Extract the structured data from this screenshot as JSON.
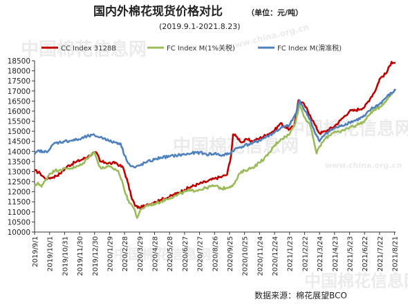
{
  "title": "国内外棉花现货价格对比",
  "unit": "（单位：元/吨）",
  "subtitle": "(2019.9.1-2021.8.23)",
  "source": "数据来源：棉花展望BCO",
  "watermark": {
    "text_cn": "中国棉花信息网",
    "text_en": "www.china.org.cn"
  },
  "chart_data": {
    "type": "line",
    "ylim": [
      10000,
      18500
    ],
    "yticks": [
      10000,
      10500,
      11000,
      11500,
      12000,
      12500,
      13000,
      13500,
      14000,
      14500,
      15000,
      15500,
      16000,
      16500,
      17000,
      17500,
      18000,
      18500
    ],
    "xlim": [
      "2019-09-01",
      "2021-08-23"
    ],
    "xtick_labels": [
      "2019/9/1",
      "2019/10/1",
      "2019/10/31",
      "2019/11/30",
      "2019/12/30",
      "2020/1/29",
      "2020/2/28",
      "2020/3/29",
      "2020/4/28",
      "2020/5/28",
      "2020/6/27",
      "2020/7/27",
      "2020/8/26",
      "2020/9/25",
      "2020/10/25",
      "2020/11/24",
      "2020/12/24",
      "2021/1/23",
      "2021/2/22",
      "2021/3/24",
      "2021/4/23",
      "2021/5/23",
      "2021/6/22",
      "2021/7/22",
      "2021/8/21"
    ],
    "legend_position": "top",
    "grid": false,
    "series": [
      {
        "name": "CC Index 3128B",
        "color": "#c00000",
        "points": [
          [
            "2019-09-01",
            13050
          ],
          [
            "2019-09-12",
            12920
          ],
          [
            "2019-09-22",
            12650
          ],
          [
            "2019-10-08",
            12720
          ],
          [
            "2019-10-22",
            12900
          ],
          [
            "2019-11-05",
            13250
          ],
          [
            "2019-11-20",
            13450
          ],
          [
            "2019-12-05",
            13600
          ],
          [
            "2019-12-20",
            13800
          ],
          [
            "2019-12-30",
            13950
          ],
          [
            "2020-01-05",
            13850
          ],
          [
            "2020-01-10",
            13500
          ],
          [
            "2020-01-20",
            13450
          ],
          [
            "2020-02-03",
            13400
          ],
          [
            "2020-02-10",
            13450
          ],
          [
            "2020-02-18",
            13300
          ],
          [
            "2020-02-25",
            13200
          ],
          [
            "2020-03-05",
            12500
          ],
          [
            "2020-03-12",
            11800
          ],
          [
            "2020-03-20",
            11300
          ],
          [
            "2020-03-29",
            11200
          ],
          [
            "2020-04-10",
            11300
          ],
          [
            "2020-04-28",
            11500
          ],
          [
            "2020-05-10",
            11600
          ],
          [
            "2020-05-28",
            11750
          ],
          [
            "2020-06-10",
            11900
          ],
          [
            "2020-06-27",
            12100
          ],
          [
            "2020-07-10",
            12250
          ],
          [
            "2020-07-27",
            12400
          ],
          [
            "2020-08-10",
            12500
          ],
          [
            "2020-08-26",
            12650
          ],
          [
            "2020-09-10",
            12750
          ],
          [
            "2020-09-20",
            12850
          ],
          [
            "2020-09-28",
            13800
          ],
          [
            "2020-10-02",
            14850
          ],
          [
            "2020-10-08",
            14750
          ],
          [
            "2020-10-20",
            14450
          ],
          [
            "2020-10-30",
            14600
          ],
          [
            "2020-11-10",
            14500
          ],
          [
            "2020-11-24",
            14650
          ],
          [
            "2020-12-10",
            14850
          ],
          [
            "2020-12-24",
            15050
          ],
          [
            "2021-01-05",
            15400
          ],
          [
            "2021-01-15",
            15200
          ],
          [
            "2021-01-23",
            15100
          ],
          [
            "2021-02-01",
            15250
          ],
          [
            "2021-02-10",
            16550
          ],
          [
            "2021-02-22",
            16300
          ],
          [
            "2021-03-05",
            15800
          ],
          [
            "2021-03-15",
            15300
          ],
          [
            "2021-03-24",
            14900
          ],
          [
            "2021-04-05",
            15000
          ],
          [
            "2021-04-23",
            15250
          ],
          [
            "2021-05-05",
            15550
          ],
          [
            "2021-05-23",
            16000
          ],
          [
            "2021-06-05",
            16050
          ],
          [
            "2021-06-22",
            16200
          ],
          [
            "2021-07-05",
            16700
          ],
          [
            "2021-07-15",
            17100
          ],
          [
            "2021-07-22",
            17600
          ],
          [
            "2021-08-05",
            17900
          ],
          [
            "2021-08-15",
            18450
          ],
          [
            "2021-08-23",
            18400
          ]
        ]
      },
      {
        "name": "FC Index M(1%关税)",
        "color": "#9bbb59",
        "points": [
          [
            "2019-09-01",
            12250
          ],
          [
            "2019-09-08",
            12450
          ],
          [
            "2019-09-15",
            12250
          ],
          [
            "2019-09-22",
            12550
          ],
          [
            "2019-10-01",
            12900
          ],
          [
            "2019-10-12",
            13050
          ],
          [
            "2019-10-22",
            13100
          ],
          [
            "2019-11-05",
            13150
          ],
          [
            "2019-11-20",
            13200
          ],
          [
            "2019-12-05",
            13350
          ],
          [
            "2019-12-20",
            13800
          ],
          [
            "2019-12-30",
            13950
          ],
          [
            "2020-01-05",
            13500
          ],
          [
            "2020-01-12",
            13150
          ],
          [
            "2020-01-25",
            13250
          ],
          [
            "2020-02-05",
            13150
          ],
          [
            "2020-02-15",
            13050
          ],
          [
            "2020-02-25",
            12350
          ],
          [
            "2020-03-05",
            11600
          ],
          [
            "2020-03-12",
            11400
          ],
          [
            "2020-03-20",
            11050
          ],
          [
            "2020-03-24",
            10700
          ],
          [
            "2020-03-29",
            11000
          ],
          [
            "2020-04-10",
            11300
          ],
          [
            "2020-04-28",
            11400
          ],
          [
            "2020-05-10",
            11500
          ],
          [
            "2020-05-28",
            11700
          ],
          [
            "2020-06-10",
            11800
          ],
          [
            "2020-06-27",
            12000
          ],
          [
            "2020-07-10",
            12050
          ],
          [
            "2020-07-27",
            12100
          ],
          [
            "2020-08-10",
            12200
          ],
          [
            "2020-08-26",
            12300
          ],
          [
            "2020-09-10",
            12150
          ],
          [
            "2020-09-25",
            12250
          ],
          [
            "2020-10-05",
            12400
          ],
          [
            "2020-10-15",
            12900
          ],
          [
            "2020-10-25",
            13050
          ],
          [
            "2020-11-10",
            13200
          ],
          [
            "2020-11-24",
            13450
          ],
          [
            "2020-12-10",
            13800
          ],
          [
            "2020-12-24",
            14300
          ],
          [
            "2021-01-05",
            14600
          ],
          [
            "2021-01-23",
            14850
          ],
          [
            "2021-02-05",
            15550
          ],
          [
            "2021-02-12",
            16350
          ],
          [
            "2021-02-22",
            15700
          ],
          [
            "2021-03-05",
            15300
          ],
          [
            "2021-03-12",
            14600
          ],
          [
            "2021-03-18",
            13900
          ],
          [
            "2021-03-24",
            14250
          ],
          [
            "2021-04-05",
            14650
          ],
          [
            "2021-04-23",
            15000
          ],
          [
            "2021-05-05",
            14950
          ],
          [
            "2021-05-23",
            15200
          ],
          [
            "2021-06-05",
            15300
          ],
          [
            "2021-06-22",
            15500
          ],
          [
            "2021-07-05",
            15950
          ],
          [
            "2021-07-22",
            16200
          ],
          [
            "2021-08-05",
            16550
          ],
          [
            "2021-08-23",
            17100
          ]
        ]
      },
      {
        "name": "FC Index M(滑准税)",
        "color": "#4f81bd",
        "points": [
          [
            "2019-09-01",
            13850
          ],
          [
            "2019-09-10",
            14050
          ],
          [
            "2019-09-20",
            13950
          ],
          [
            "2019-10-01",
            14100
          ],
          [
            "2019-10-10",
            14400
          ],
          [
            "2019-10-20",
            14450
          ],
          [
            "2019-10-31",
            14500
          ],
          [
            "2019-11-15",
            14550
          ],
          [
            "2019-11-30",
            14600
          ],
          [
            "2019-12-15",
            14750
          ],
          [
            "2019-12-30",
            14800
          ],
          [
            "2020-01-10",
            14700
          ],
          [
            "2020-01-20",
            14650
          ],
          [
            "2020-01-29",
            14500
          ],
          [
            "2020-02-10",
            14450
          ],
          [
            "2020-02-20",
            14400
          ],
          [
            "2020-02-28",
            13800
          ],
          [
            "2020-03-10",
            13300
          ],
          [
            "2020-03-20",
            13200
          ],
          [
            "2020-03-29",
            13300
          ],
          [
            "2020-04-10",
            13450
          ],
          [
            "2020-04-28",
            13600
          ],
          [
            "2020-05-10",
            13700
          ],
          [
            "2020-05-28",
            13750
          ],
          [
            "2020-06-10",
            13800
          ],
          [
            "2020-06-27",
            13850
          ],
          [
            "2020-07-10",
            13900
          ],
          [
            "2020-07-27",
            13950
          ],
          [
            "2020-08-10",
            13850
          ],
          [
            "2020-08-26",
            13900
          ],
          [
            "2020-09-10",
            13800
          ],
          [
            "2020-09-25",
            13900
          ],
          [
            "2020-10-05",
            14100
          ],
          [
            "2020-10-15",
            14200
          ],
          [
            "2020-10-25",
            14300
          ],
          [
            "2020-11-10",
            14400
          ],
          [
            "2020-11-24",
            14550
          ],
          [
            "2020-12-10",
            14750
          ],
          [
            "2020-12-24",
            14950
          ],
          [
            "2021-01-05",
            15150
          ],
          [
            "2021-01-23",
            15300
          ],
          [
            "2021-02-05",
            15900
          ],
          [
            "2021-02-12",
            16550
          ],
          [
            "2021-02-22",
            16050
          ],
          [
            "2021-03-05",
            15600
          ],
          [
            "2021-03-15",
            14900
          ],
          [
            "2021-03-24",
            14500
          ],
          [
            "2021-04-05",
            14900
          ],
          [
            "2021-04-23",
            15150
          ],
          [
            "2021-05-05",
            15250
          ],
          [
            "2021-05-23",
            15450
          ],
          [
            "2021-06-05",
            15550
          ],
          [
            "2021-06-22",
            15750
          ],
          [
            "2021-07-05",
            16100
          ],
          [
            "2021-07-22",
            16350
          ],
          [
            "2021-08-05",
            16700
          ],
          [
            "2021-08-23",
            17050
          ]
        ]
      }
    ]
  }
}
